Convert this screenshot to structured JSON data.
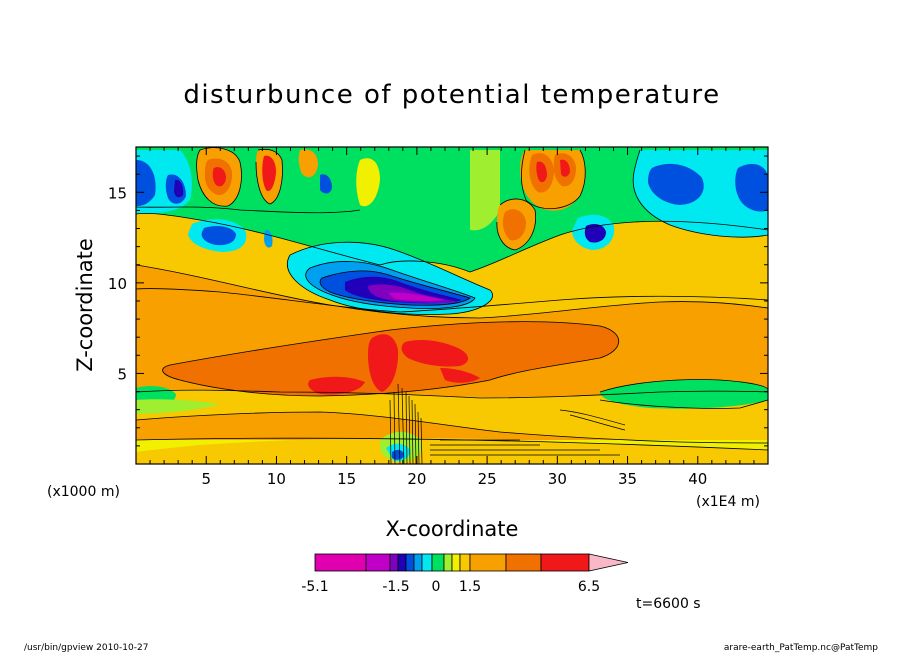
{
  "chart_data": {
    "type": "heatmap",
    "title": "disturbunce of potential temperature",
    "xlabel": "X-coordinate",
    "ylabel": "Z-coordinate",
    "x_unit_left": "(x1000 m)",
    "x_unit_right": "(x1E4 m)",
    "xlim": [
      0,
      45
    ],
    "ylim": [
      0,
      17.5
    ],
    "x_ticks": [
      5,
      10,
      15,
      20,
      25,
      30,
      35,
      40
    ],
    "y_ticks": [
      5,
      10,
      15
    ],
    "colorbar": {
      "colors": [
        "#e000b0",
        "#c000c8",
        "#8000c0",
        "#2000b8",
        "#0050e0",
        "#00a0f0",
        "#00e8f0",
        "#00e060",
        "#a0ee30",
        "#f0f000",
        "#f8c800",
        "#f8a000",
        "#f07000",
        "#f01818",
        "#f87878",
        "#f8b8c8"
      ],
      "labels": [
        "-5.1",
        "-1.5",
        "0",
        "1.5",
        "6.5"
      ]
    },
    "time_label": "t=6600 s",
    "footer_left": "/usr/bin/gpview   2010-10-27",
    "footer_right": "arare-earth_PatTemp.nc@PatTemp"
  }
}
